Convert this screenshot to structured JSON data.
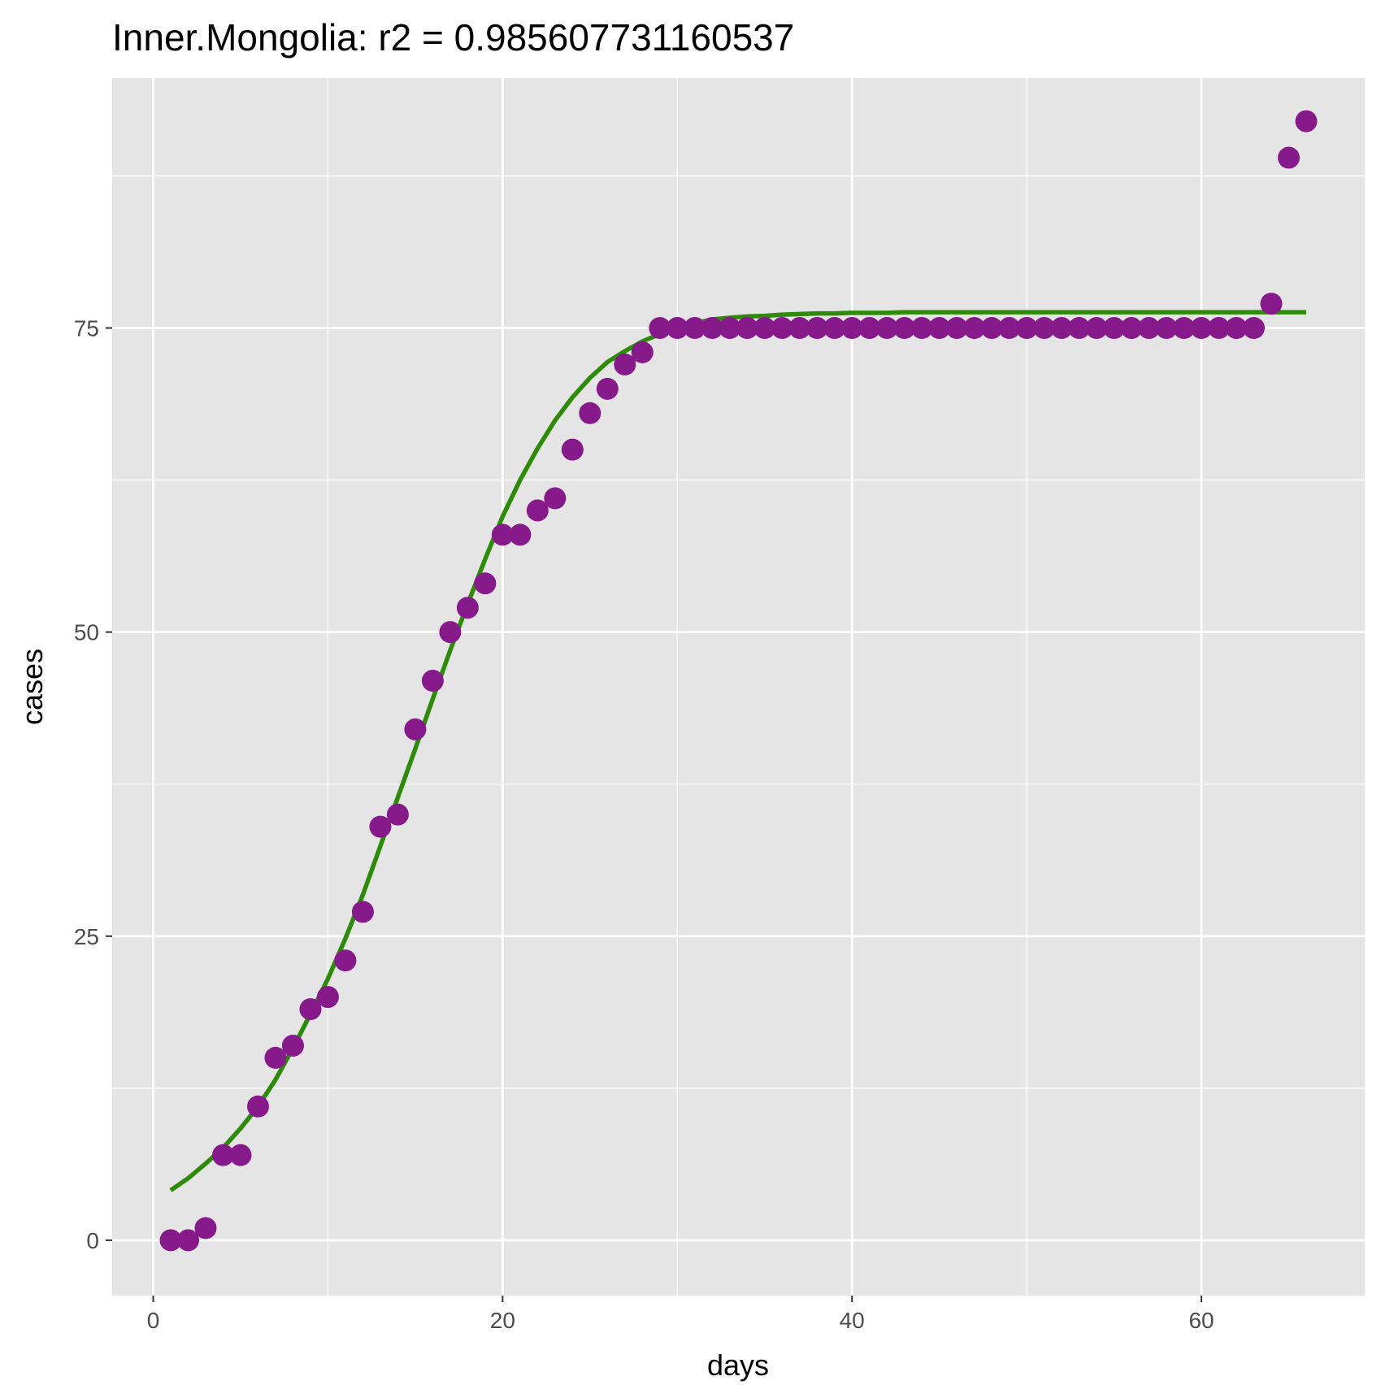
{
  "chart_data": {
    "type": "scatter",
    "title": "Inner.Mongolia: r2 = 0.985607731160537",
    "xlabel": "days",
    "ylabel": "cases",
    "xlim": [
      -2.35,
      69.35
    ],
    "ylim": [
      -4.55,
      95.55
    ],
    "x_ticks": [
      0,
      20,
      40,
      60
    ],
    "y_ticks": [
      0,
      25,
      50,
      75
    ],
    "x_minor_ticks": [
      10,
      30,
      50
    ],
    "y_minor_ticks": [
      12.5,
      37.5,
      62.5,
      87.5
    ],
    "x_tick_labels": [
      "0",
      "20",
      "40",
      "60"
    ],
    "y_tick_labels": [
      "0",
      "25",
      "50",
      "75"
    ],
    "grid": true,
    "legend": "none",
    "colors": {
      "panel": "#e5e5e5",
      "grid": "#ffffff",
      "points": "#861a8a",
      "fit": "#2e8b0a",
      "tick_text": "#4d4d4d"
    },
    "series": [
      {
        "kind": "points",
        "x": [
          1,
          2,
          3,
          4,
          5,
          6,
          7,
          8,
          9,
          10,
          11,
          12,
          13,
          14,
          15,
          16,
          17,
          18,
          19,
          20,
          21,
          22,
          23,
          24,
          25,
          26,
          27,
          28,
          29,
          30,
          31,
          32,
          33,
          34,
          35,
          36,
          37,
          38,
          39,
          40,
          41,
          42,
          43,
          44,
          45,
          46,
          47,
          48,
          49,
          50,
          51,
          52,
          53,
          54,
          55,
          56,
          57,
          58,
          59,
          60,
          61,
          62,
          63,
          64,
          65,
          66
        ],
        "y": [
          0,
          0,
          1,
          7,
          7,
          11,
          15,
          16,
          19,
          20,
          23,
          27,
          34,
          35,
          42,
          46,
          50,
          52,
          54,
          58,
          58,
          60,
          61,
          65,
          68,
          70,
          72,
          73,
          75,
          75,
          75,
          75,
          75,
          75,
          75,
          75,
          75,
          75,
          75,
          75,
          75,
          75,
          75,
          75,
          75,
          75,
          75,
          75,
          75,
          75,
          75,
          75,
          75,
          75,
          75,
          75,
          75,
          75,
          75,
          75,
          75,
          75,
          75,
          77,
          89,
          92
        ]
      },
      {
        "kind": "fit",
        "x": [
          1,
          2,
          3,
          4,
          5,
          6,
          7,
          8,
          9,
          10,
          11,
          12,
          13,
          14,
          15,
          16,
          17,
          18,
          19,
          20,
          21,
          22,
          23,
          24,
          25,
          26,
          27,
          28,
          29,
          30,
          31,
          32,
          33,
          34,
          35,
          36,
          37,
          38,
          39,
          40,
          41,
          42,
          43,
          44,
          45,
          46,
          47,
          48,
          49,
          50,
          51,
          52,
          53,
          54,
          55,
          56,
          57,
          58,
          59,
          60,
          61,
          62,
          63,
          64,
          65,
          66
        ],
        "y": [
          4.1,
          5.1,
          6.3,
          7.6,
          9.2,
          11.0,
          13.2,
          15.8,
          18.6,
          21.5,
          24.8,
          28.4,
          32.4,
          36.4,
          40.4,
          44.5,
          48.5,
          52.3,
          56.0,
          59.5,
          62.5,
          65.1,
          67.4,
          69.3,
          70.9,
          72.2,
          73.1,
          73.9,
          74.5,
          75.0,
          75.4,
          75.7,
          75.85,
          75.95,
          76.0,
          76.1,
          76.15,
          76.2,
          76.2,
          76.25,
          76.25,
          76.25,
          76.3,
          76.3,
          76.3,
          76.3,
          76.3,
          76.3,
          76.3,
          76.3,
          76.3,
          76.3,
          76.3,
          76.3,
          76.3,
          76.3,
          76.3,
          76.3,
          76.3,
          76.3,
          76.3,
          76.3,
          76.3,
          76.3,
          76.3,
          76.3
        ]
      }
    ]
  }
}
